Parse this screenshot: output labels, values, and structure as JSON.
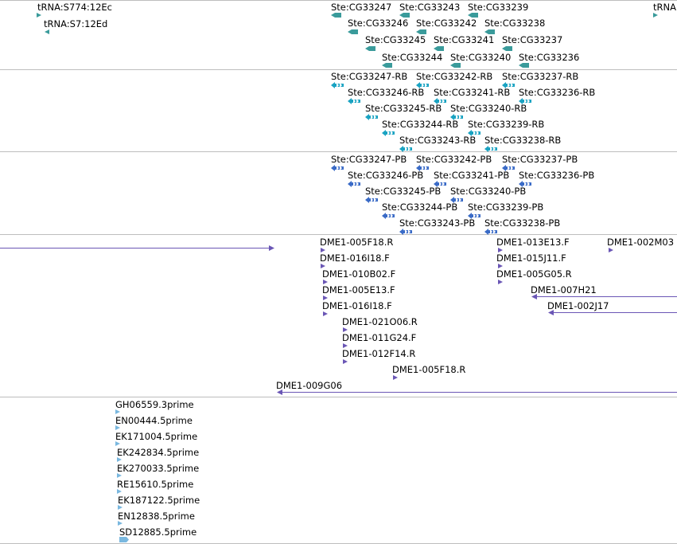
{
  "colors": {
    "trna": "#3a9b9b",
    "gene": "#3a9b9b",
    "rna": "#1aa3c2",
    "protein": "#3a6bc7",
    "clone": "#6a56b5",
    "est": "#7ab8df",
    "separator": "#bdbdbd"
  },
  "tracks": [
    {
      "name": "trna-track",
      "features": [
        {
          "label": "tRNA:S774:12Ec",
          "shape": "tri-down"
        },
        {
          "label": "tRNA:S7:12Ed",
          "shape": "tri-left"
        },
        {
          "label": "tRNA",
          "shape": "tri-right"
        }
      ]
    },
    {
      "name": "gene-track",
      "features": [
        {
          "label": "Ste:CG33247",
          "shape": "arrow"
        },
        {
          "label": "Ste:CG33243",
          "shape": "arrow"
        },
        {
          "label": "Ste:CG33239",
          "shape": "arrow"
        },
        {
          "label": "Ste:CG33246",
          "shape": "arrow"
        },
        {
          "label": "Ste:CG33242",
          "shape": "arrow"
        },
        {
          "label": "Ste:CG33238",
          "shape": "arrow"
        },
        {
          "label": "Ste:CG33245",
          "shape": "arrow"
        },
        {
          "label": "Ste:CG33241",
          "shape": "arrow"
        },
        {
          "label": "Ste:CG33237",
          "shape": "arrow"
        },
        {
          "label": "Ste:CG33244",
          "shape": "arrow"
        },
        {
          "label": "Ste:CG33240",
          "shape": "arrow"
        },
        {
          "label": "Ste:CG33236",
          "shape": "arrow"
        }
      ]
    },
    {
      "name": "transcript-track",
      "features": [
        {
          "label": "Ste:CG33247-RB",
          "shape": "fish"
        },
        {
          "label": "Ste:CG33242-RB",
          "shape": "fish"
        },
        {
          "label": "Ste:CG33237-RB",
          "shape": "fish"
        },
        {
          "label": "Ste:CG33246-RB",
          "shape": "fish"
        },
        {
          "label": "Ste:CG33241-RB",
          "shape": "fish"
        },
        {
          "label": "Ste:CG33236-RB",
          "shape": "fish"
        },
        {
          "label": "Ste:CG33245-RB",
          "shape": "fish"
        },
        {
          "label": "Ste:CG33240-RB",
          "shape": "fish"
        },
        {
          "label": "Ste:CG33244-RB",
          "shape": "fish"
        },
        {
          "label": "Ste:CG33239-RB",
          "shape": "fish"
        },
        {
          "label": "Ste:CG33243-RB",
          "shape": "fish"
        },
        {
          "label": "Ste:CG33238-RB",
          "shape": "fish"
        }
      ]
    },
    {
      "name": "protein-track",
      "features": [
        {
          "label": "Ste:CG33247-PB",
          "shape": "fish"
        },
        {
          "label": "Ste:CG33242-PB",
          "shape": "fish"
        },
        {
          "label": "Ste:CG33237-PB",
          "shape": "fish"
        },
        {
          "label": "Ste:CG33246-PB",
          "shape": "fish"
        },
        {
          "label": "Ste:CG33241-PB",
          "shape": "fish"
        },
        {
          "label": "Ste:CG33236-PB",
          "shape": "fish"
        },
        {
          "label": "Ste:CG33245-PB",
          "shape": "fish"
        },
        {
          "label": "Ste:CG33240-PB",
          "shape": "fish"
        },
        {
          "label": "Ste:CG33244-PB",
          "shape": "fish"
        },
        {
          "label": "Ste:CG33239-PB",
          "shape": "fish"
        },
        {
          "label": "Ste:CG33243-PB",
          "shape": "fish"
        },
        {
          "label": "Ste:CG33238-PB",
          "shape": "fish"
        }
      ]
    },
    {
      "name": "clone-track",
      "features": [
        {
          "label": "",
          "shape": "line-right"
        },
        {
          "label": "DME1-005F18.R",
          "shape": "tri-down"
        },
        {
          "label": "DME1-013E13.F",
          "shape": "tri-down"
        },
        {
          "label": "DME1-002M03",
          "shape": "tri-down"
        },
        {
          "label": "DME1-016I18.F",
          "shape": "tri-down"
        },
        {
          "label": "DME1-015J11.F",
          "shape": "tri-down"
        },
        {
          "label": "DME1-010B02.F",
          "shape": "tri-down"
        },
        {
          "label": "DME1-005G05.R",
          "shape": "tri-down"
        },
        {
          "label": "DME1-005E13.F",
          "shape": "tri-down"
        },
        {
          "label": "DME1-007H21",
          "shape": "line-left"
        },
        {
          "label": "DME1-016I18.F",
          "shape": "tri-down"
        },
        {
          "label": "DME1-002J17",
          "shape": "line-left"
        },
        {
          "label": "DME1-021O06.R",
          "shape": "tri-down"
        },
        {
          "label": "DME1-011G24.F",
          "shape": "tri-down"
        },
        {
          "label": "DME1-012F14.R",
          "shape": "tri-down"
        },
        {
          "label": "DME1-005F18.R",
          "shape": "tri-down"
        },
        {
          "label": "DME1-009G06",
          "shape": "line-left"
        }
      ]
    },
    {
      "name": "est-track",
      "features": [
        {
          "label": "GH06559.3prime",
          "shape": "tri-right"
        },
        {
          "label": "EN00444.5prime",
          "shape": "tri-right"
        },
        {
          "label": "EK171004.5prime",
          "shape": "tri-right"
        },
        {
          "label": "EK242834.5prime",
          "shape": "tri-right"
        },
        {
          "label": "EK270033.5prime",
          "shape": "tri-right"
        },
        {
          "label": "RE15610.5prime",
          "shape": "tri-right"
        },
        {
          "label": "EK187122.5prime",
          "shape": "tri-right"
        },
        {
          "label": "EN12838.5prime",
          "shape": "tri-right"
        },
        {
          "label": "SD12885.5prime",
          "shape": "bar-right"
        }
      ]
    }
  ]
}
